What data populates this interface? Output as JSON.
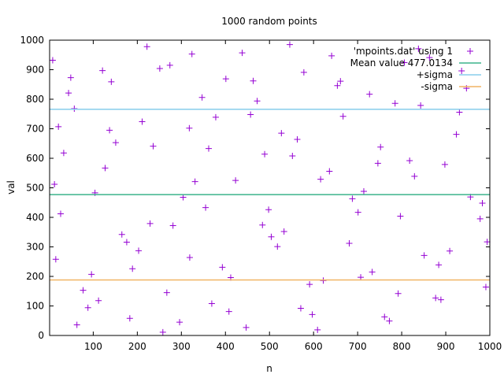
{
  "chart_data": {
    "type": "scatter",
    "title": "1000 random points",
    "xlabel": "n",
    "ylabel": "val",
    "xlim": [
      1,
      1000
    ],
    "ylim": [
      0,
      1000
    ],
    "xticks": [
      100,
      200,
      300,
      400,
      500,
      600,
      700,
      800,
      900,
      1000
    ],
    "yticks": [
      0,
      100,
      200,
      300,
      400,
      500,
      600,
      700,
      800,
      900,
      1000
    ],
    "grid": false,
    "legend_position": "top-right",
    "series": [
      {
        "name": "'mpoints.dat' using 1",
        "kind": "points",
        "marker": "plus",
        "color": "#9400d3",
        "point_count": 1000,
        "distribution": "uniform random, 0 to 1000",
        "x": [
          8,
          26,
          57,
          112,
          151,
          203,
          251,
          296,
          331,
          378,
          412,
          463,
          504,
          552,
          597,
          641,
          688,
          733,
          785,
          829,
          877,
          924,
          978,
          15,
          44,
          88,
          127,
          176,
          222,
          267,
          318,
          355,
          401,
          447,
          489,
          533,
          578,
          622,
          667,
          714,
          761,
          806,
          851,
          898,
          947,
          991,
          21,
          63,
          104,
          141,
          189,
          236,
          281,
          324,
          369,
          423,
          472,
          518,
          563,
          609,
          654,
          701,
          746,
          792,
          838,
          884,
          931,
          983,
          12,
          49,
          96,
          137,
          183,
          229,
          274,
          319,
          362,
          408,
          457,
          498,
          546,
          591,
          636,
          681,
          727,
          772,
          818,
          863,
          909,
          956,
          33,
          77,
          121,
          165,
          211,
          258,
          304,
          347,
          393,
          438,
          484,
          527,
          571,
          616,
          661,
          707,
          752,
          797,
          843,
          889,
          936,
          994
        ],
        "y": [
          932,
          412,
          768,
          118,
          653,
          287,
          904,
          45,
          521,
          739,
          196,
          862,
          334,
          608,
          71,
          947,
          463,
          215,
          786,
          539,
          127,
          681,
          395,
          258,
          821,
          94,
          567,
          316,
          978,
          145,
          702,
          433,
          869,
          27,
          614,
          352,
          891,
          186,
          742,
          488,
          63,
          924,
          271,
          579,
          837,
          164,
          707,
          36,
          483,
          859,
          226,
          641,
          372,
          953,
          108,
          525,
          794,
          301,
          664,
          19,
          846,
          417,
          583,
          142,
          971,
          239,
          756,
          448,
          512,
          873,
          207,
          695,
          58,
          379,
          915,
          264,
          633,
          81,
          748,
          426,
          985,
          173,
          556,
          312,
          817,
          49,
          592,
          941,
          286,
          469,
          618,
          153,
          897,
          342,
          724,
          11,
          468,
          806,
          231,
          957,
          374,
          685,
          92,
          529,
          861,
          197,
          638,
          404,
          779,
          121,
          896,
          317
        ]
      },
      {
        "name": "Mean value 477.0134",
        "kind": "hline",
        "value": 477.0134,
        "color": "#3cb38b"
      },
      {
        "name": "+sigma",
        "kind": "hline",
        "value": 766,
        "color": "#87ceeb"
      },
      {
        "name": "-sigma",
        "kind": "hline",
        "value": 188,
        "color": "#f0b463"
      }
    ]
  }
}
